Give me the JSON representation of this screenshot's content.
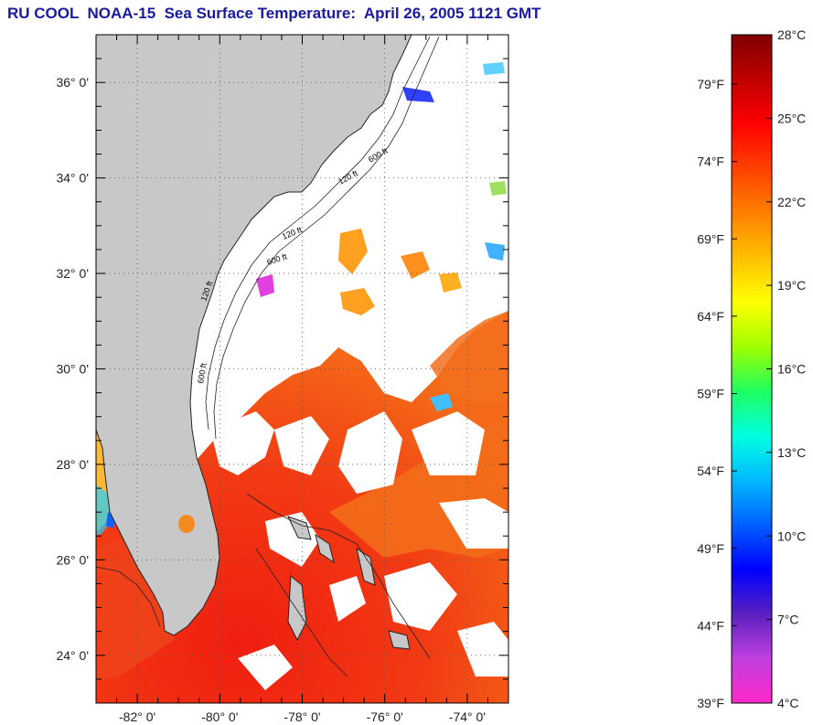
{
  "title": "RU COOL  NOAA-15  Sea Surface Temperature:  April 26, 2005 1121 GMT",
  "map": {
    "lon_range": [
      -83,
      -73
    ],
    "lat_range": [
      23,
      37
    ],
    "lat_ticks": [
      {
        "value": 36,
        "label": "36° 0'"
      },
      {
        "value": 34,
        "label": "34° 0'"
      },
      {
        "value": 32,
        "label": "32° 0'"
      },
      {
        "value": 30,
        "label": "30° 0'"
      },
      {
        "value": 28,
        "label": "28° 0'"
      },
      {
        "value": 26,
        "label": "26° 0'"
      },
      {
        "value": 24,
        "label": "24° 0'"
      }
    ],
    "lon_ticks": [
      {
        "value": -82,
        "label": "-82° 0'"
      },
      {
        "value": -80,
        "label": "-80° 0'"
      },
      {
        "value": -78,
        "label": "-78° 0'"
      },
      {
        "value": -76,
        "label": "-76° 0'"
      },
      {
        "value": -74,
        "label": "-74° 0'"
      }
    ],
    "contour_labels": [
      "120 ft",
      "600 ft",
      "120 ft",
      "600 ft",
      "120 ft",
      "600 ft"
    ],
    "colors": {
      "land": "#c8c8c8",
      "cloud": "#ffffff",
      "warm": "#e8341c",
      "mid": "#f05a14"
    }
  },
  "colorbar": {
    "celsius": [
      "28°C",
      "25°C",
      "22°C",
      "19°C",
      "16°C",
      "13°C",
      "10°C",
      "7°C",
      "4°C"
    ],
    "fahrenheit": [
      "79°F",
      "74°F",
      "69°F",
      "64°F",
      "59°F",
      "54°F",
      "49°F",
      "44°F",
      "39°F"
    ],
    "stops": [
      "#ff28c8",
      "#c040e0",
      "#5a20c0",
      "#0000ff",
      "#0060ff",
      "#00b8ff",
      "#00ffe0",
      "#20ff60",
      "#a0ff00",
      "#ffff00",
      "#ffc000",
      "#ff8000",
      "#ff4000",
      "#ff0000",
      "#c00000",
      "#800000"
    ]
  }
}
